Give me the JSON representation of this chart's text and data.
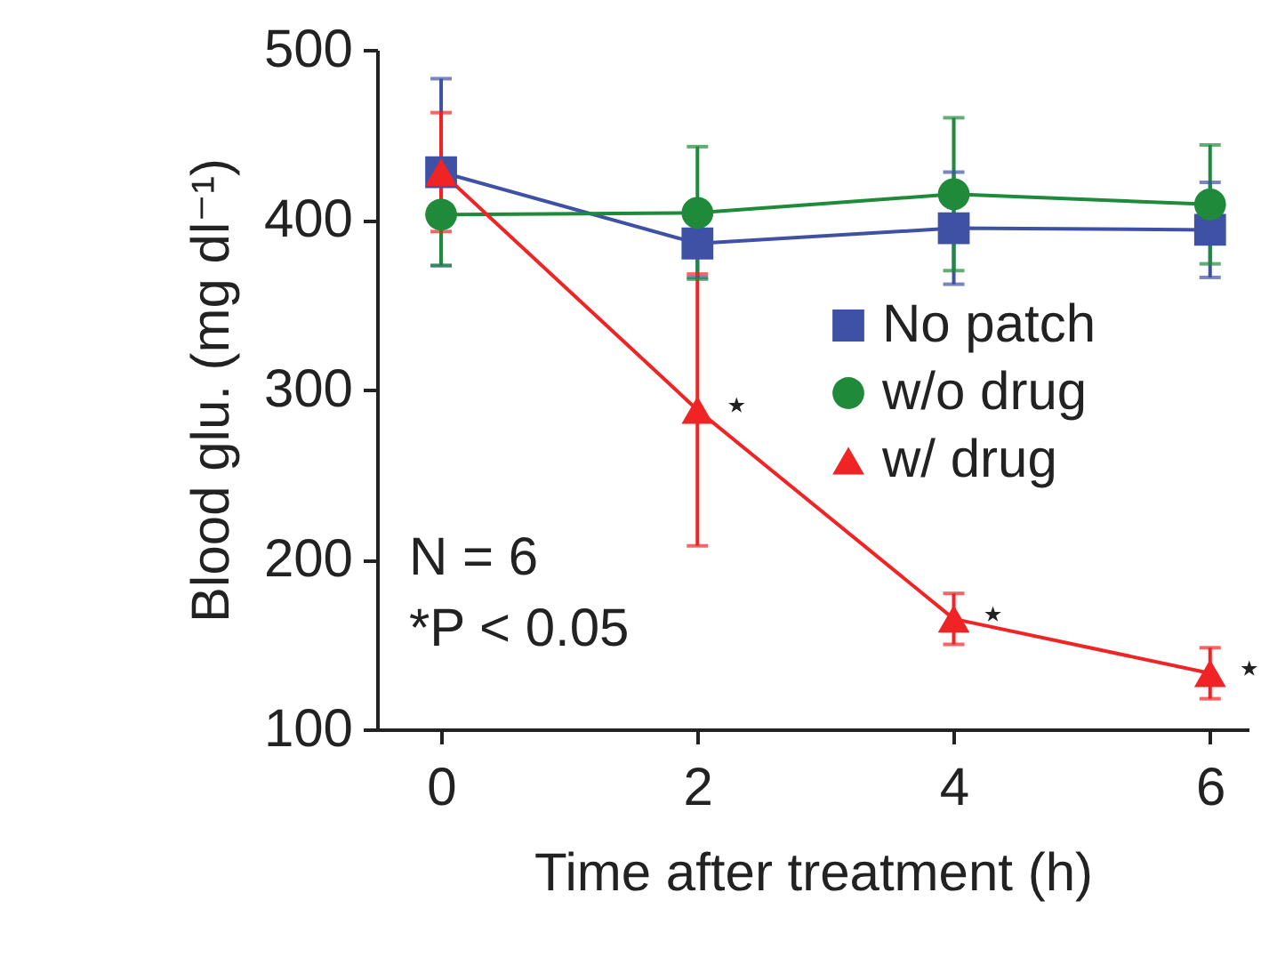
{
  "chart_data": {
    "type": "line",
    "xlabel": "Time after treatment (h)",
    "ylabel": "Blood glu. (mg dl⁻¹)",
    "x": [
      0,
      2,
      4,
      6
    ],
    "xlim": [
      -0.5,
      6.3
    ],
    "xticks": [
      {
        "value": 0,
        "label": "0"
      },
      {
        "value": 2,
        "label": "2"
      },
      {
        "value": 4,
        "label": "4"
      },
      {
        "value": 6,
        "label": "6"
      }
    ],
    "ylim": [
      100,
      500
    ],
    "yticks": [
      100,
      200,
      300,
      400,
      500
    ],
    "legend": "right",
    "grid": false,
    "line_style": "solid",
    "series": [
      {
        "name": "No patch",
        "color": "#3f51a5",
        "marker": "square",
        "values": [
          428,
          386,
          395,
          394
        ],
        "errors": [
          55,
          20,
          33,
          28
        ]
      },
      {
        "name": "w/o drug",
        "color": "#1e8a3a",
        "marker": "circle",
        "values": [
          403,
          404,
          415,
          409
        ],
        "errors": [
          30,
          39,
          45,
          35
        ]
      },
      {
        "name": "w/ drug",
        "color": "#f02424",
        "marker": "triangle",
        "values": [
          428,
          288,
          165,
          133
        ],
        "errors": [
          35,
          80,
          15,
          15
        ]
      }
    ],
    "annotations": [
      {
        "text": "⋆",
        "x": 2,
        "y": 288
      },
      {
        "text": "⋆",
        "x": 4,
        "y": 165
      },
      {
        "text": "⋆",
        "x": 6,
        "y": 133
      },
      "N = 6",
      "*P < 0.05"
    ]
  }
}
